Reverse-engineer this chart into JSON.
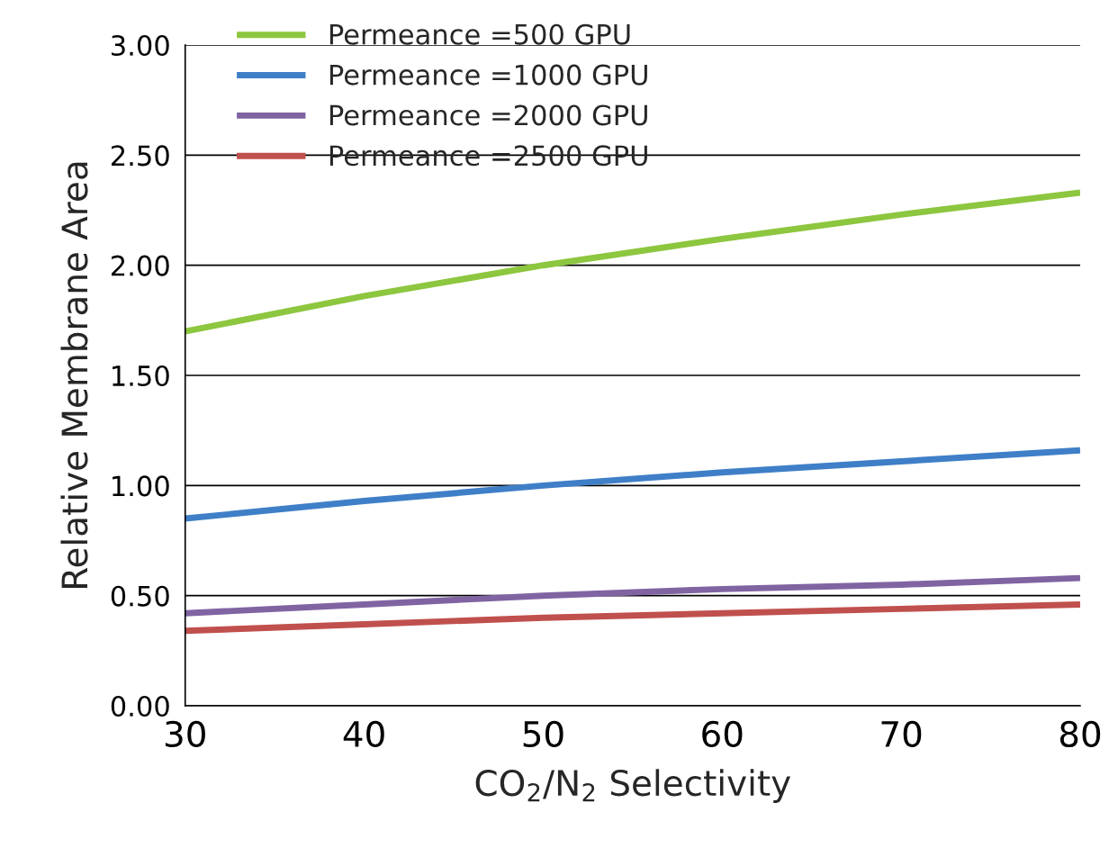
{
  "chart_data": {
    "type": "line",
    "xlabel": "CO$_{2}$/N$_{2}$ Selectivity",
    "ylabel": "Relative Membrane Area",
    "x": [
      30,
      40,
      50,
      60,
      70,
      80
    ],
    "series": [
      {
        "name": "Permeance =500 GPU",
        "color": "#8dc63f",
        "values": [
          1.7,
          1.86,
          2.0,
          2.12,
          2.23,
          2.33
        ]
      },
      {
        "name": "Permeance =1000 GPU",
        "color": "#3f7fc7",
        "values": [
          0.85,
          0.93,
          1.0,
          1.06,
          1.11,
          1.16
        ]
      },
      {
        "name": "Permeance =2000 GPU",
        "color": "#8064a2",
        "values": [
          0.42,
          0.46,
          0.5,
          0.53,
          0.55,
          0.58
        ]
      },
      {
        "name": "Permeance =2500 GPU",
        "color": "#c0504d",
        "values": [
          0.34,
          0.37,
          0.4,
          0.42,
          0.44,
          0.46
        ]
      }
    ],
    "xlim": [
      30,
      80
    ],
    "xticks": [
      30,
      40,
      50,
      60,
      70,
      80
    ],
    "ylim": [
      0,
      3
    ],
    "yticks": [
      {
        "value": 0,
        "label": "0.00"
      },
      {
        "value": 0.5,
        "label": "0.50"
      },
      {
        "value": 1,
        "label": "1.00"
      },
      {
        "value": 1.5,
        "label": "1.50"
      },
      {
        "value": 2,
        "label": "2.00"
      },
      {
        "value": 2.5,
        "label": "2.50"
      },
      {
        "value": 3,
        "label": "3.00"
      }
    ],
    "grid": "y",
    "legend": "top left"
  }
}
